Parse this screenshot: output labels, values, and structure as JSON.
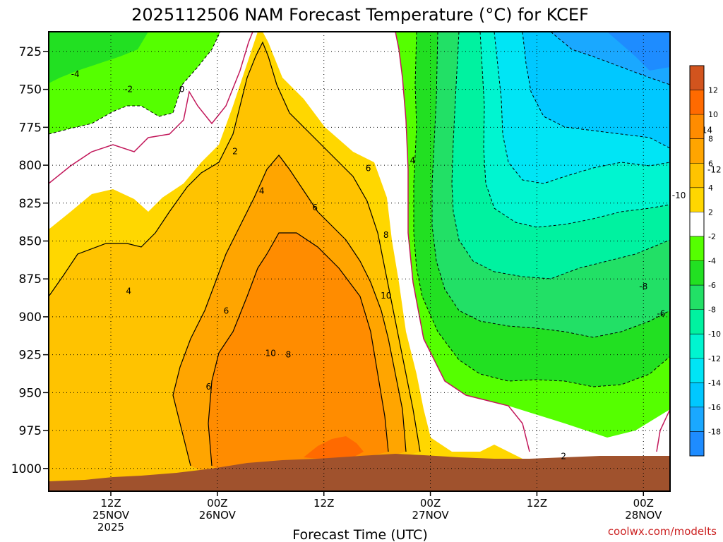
{
  "chart_data": {
    "type": "heatmap",
    "title": "2025112506 NAM Forecast Temperature (°C) for KCEF",
    "xlabel": "Forecast Time (UTC)",
    "ylabel": "",
    "credit": "coolwx.com/modelts",
    "y_axis": {
      "unit": "hPa",
      "range": [
        712,
        1015
      ],
      "ticks": [
        725,
        750,
        775,
        800,
        825,
        850,
        875,
        900,
        925,
        950,
        975,
        1000
      ]
    },
    "x_axis": {
      "range_hours": [
        -1,
        69
      ],
      "ticks": [
        {
          "hour": 6,
          "line1": "12Z",
          "line2": "25NOV",
          "line3": "2025"
        },
        {
          "hour": 18,
          "line1": "00Z",
          "line2": "26NOV",
          "line3": ""
        },
        {
          "hour": 30,
          "line1": "12Z",
          "line2": "",
          "line3": ""
        },
        {
          "hour": 42,
          "line1": "00Z",
          "line2": "27NOV",
          "line3": ""
        },
        {
          "hour": 54,
          "line1": "12Z",
          "line2": "",
          "line3": ""
        },
        {
          "hour": 66,
          "line1": "00Z",
          "line2": "28NOV",
          "line3": ""
        },
        {
          "hour": 78,
          "line1": "12Z",
          "line2": "",
          "line3": ""
        }
      ]
    },
    "colorbar": {
      "labels": [
        "12",
        "10",
        "8",
        "6",
        "4",
        "2",
        "-2",
        "-4",
        "-6",
        "-8",
        "-10",
        "-12",
        "-14",
        "-16",
        "-18"
      ],
      "bins": [
        {
          "range": [
            12,
            14
          ],
          "color": "#d2541e"
        },
        {
          "range": [
            10,
            12
          ],
          "color": "#ff6a00"
        },
        {
          "range": [
            8,
            10
          ],
          "color": "#ff8c00"
        },
        {
          "range": [
            6,
            8
          ],
          "color": "#ffa500"
        },
        {
          "range": [
            4,
            6
          ],
          "color": "#ffc300"
        },
        {
          "range": [
            2,
            4
          ],
          "color": "#ffd700"
        },
        {
          "range": [
            -2,
            2
          ],
          "color": "#ffffff"
        },
        {
          "range": [
            -4,
            -2
          ],
          "color": "#55ff00"
        },
        {
          "range": [
            -6,
            -4
          ],
          "color": "#22e022"
        },
        {
          "range": [
            -8,
            -6
          ],
          "color": "#22e066"
        },
        {
          "range": [
            -10,
            -8
          ],
          "color": "#00f2a0"
        },
        {
          "range": [
            -12,
            -10
          ],
          "color": "#00f5d0"
        },
        {
          "range": [
            -14,
            -12
          ],
          "color": "#00e5f5"
        },
        {
          "range": [
            -16,
            -14
          ],
          "color": "#00c8ff"
        },
        {
          "range": [
            -18,
            -16
          ],
          "color": "#1aa8ff"
        },
        {
          "range": [
            -20,
            -18
          ],
          "color": "#1e8cff"
        }
      ]
    },
    "contour_labels": [
      {
        "text": "-4",
        "hour": 2,
        "p": 740
      },
      {
        "text": "-2",
        "hour": 8,
        "p": 750
      },
      {
        "text": "0",
        "hour": 14,
        "p": 750
      },
      {
        "text": "2",
        "hour": 20,
        "p": 791
      },
      {
        "text": "4",
        "hour": 23,
        "p": 817
      },
      {
        "text": "4",
        "hour": 8,
        "p": 883
      },
      {
        "text": "6",
        "hour": 29,
        "p": 828
      },
      {
        "text": "6",
        "hour": 35,
        "p": 802
      },
      {
        "text": "4",
        "hour": 40,
        "p": 797
      },
      {
        "text": "8",
        "hour": 37,
        "p": 846
      },
      {
        "text": "10",
        "hour": 37,
        "p": 886
      },
      {
        "text": "6",
        "hour": 19,
        "p": 896
      },
      {
        "text": "10",
        "hour": 24,
        "p": 924
      },
      {
        "text": "8",
        "hour": 26,
        "p": 925
      },
      {
        "text": "6",
        "hour": 17,
        "p": 946
      },
      {
        "text": "2",
        "hour": 57,
        "p": 992
      },
      {
        "text": "-14",
        "hour": 73,
        "p": 777
      },
      {
        "text": "-12",
        "hour": 74,
        "p": 803
      },
      {
        "text": "-10",
        "hour": 70,
        "p": 820
      },
      {
        "text": "-8",
        "hour": 66,
        "p": 880
      },
      {
        "text": "-6",
        "hour": 68,
        "p": 898
      }
    ]
  }
}
